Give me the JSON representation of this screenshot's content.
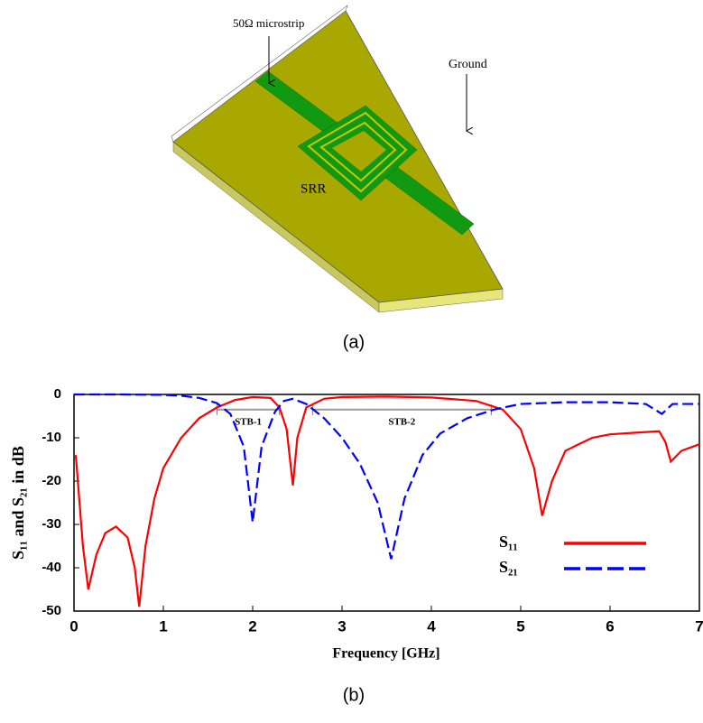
{
  "diagram": {
    "labels": {
      "microstrip": "50Ω microstrip",
      "ground": "Ground",
      "srr": "SRR"
    },
    "caption": "(a)"
  },
  "chart_data": {
    "type": "line",
    "caption": "(b)",
    "x_label": "Frequency [GHz]",
    "y_label": "S₁₁ and S₂₁ in dB",
    "xlim": [
      0,
      7
    ],
    "ylim": [
      -50,
      0
    ],
    "xticks": [
      0,
      1,
      2,
      3,
      4,
      5,
      6,
      7
    ],
    "yticks": [
      0,
      -10,
      -20,
      -30,
      -40,
      -50
    ],
    "legend": "lower right",
    "series": [
      {
        "name": "S₁₁",
        "color": "#ff0000",
        "dash": false,
        "x": [
          0.02,
          0.1,
          0.16,
          0.25,
          0.35,
          0.47,
          0.6,
          0.68,
          0.73,
          0.8,
          0.9,
          1.0,
          1.2,
          1.4,
          1.6,
          1.8,
          2.0,
          2.2,
          2.3,
          2.38,
          2.45,
          2.5,
          2.6,
          2.8,
          3.0,
          3.5,
          4.0,
          4.5,
          4.8,
          5.0,
          5.15,
          5.24,
          5.35,
          5.5,
          5.8,
          6.0,
          6.3,
          6.55,
          6.62,
          6.68,
          6.8,
          7.0
        ],
        "values": [
          -14,
          -35,
          -45,
          -37,
          -32,
          -30.5,
          -33,
          -40,
          -49,
          -35,
          -24,
          -17,
          -10,
          -5.5,
          -3,
          -1.3,
          -0.6,
          -0.8,
          -3,
          -8,
          -21,
          -10,
          -3,
          -1,
          -0.6,
          -0.5,
          -0.7,
          -1.5,
          -3.5,
          -8,
          -17,
          -28,
          -20,
          -13,
          -10,
          -9.2,
          -8.8,
          -8.5,
          -11,
          -15.5,
          -13,
          -11.5
        ]
      },
      {
        "name": "S₂₁",
        "color": "#0000ff",
        "dash": true,
        "x": [
          0,
          0.5,
          1.0,
          1.2,
          1.4,
          1.6,
          1.75,
          1.9,
          2.0,
          2.1,
          2.25,
          2.35,
          2.45,
          2.6,
          2.8,
          3.0,
          3.2,
          3.4,
          3.55,
          3.7,
          3.9,
          4.1,
          4.4,
          4.7,
          5.0,
          5.5,
          6.0,
          6.4,
          6.58,
          6.7,
          7.0
        ],
        "values": [
          0,
          0,
          -0.1,
          -0.3,
          -0.8,
          -2,
          -4.5,
          -12,
          -29.5,
          -12,
          -4,
          -1.5,
          -1,
          -2.2,
          -5.5,
          -10,
          -16,
          -25,
          -38,
          -24,
          -14,
          -9,
          -5.5,
          -3.5,
          -2.2,
          -1.8,
          -1.8,
          -2.2,
          -4.5,
          -2.2,
          -2.2
        ]
      }
    ],
    "annotations": [
      {
        "text": "STB-1",
        "x": [
          1.6,
          2.3
        ],
        "y": -3.5
      },
      {
        "text": "STB-2",
        "x": [
          2.67,
          4.67
        ],
        "y": -3.5
      }
    ]
  }
}
